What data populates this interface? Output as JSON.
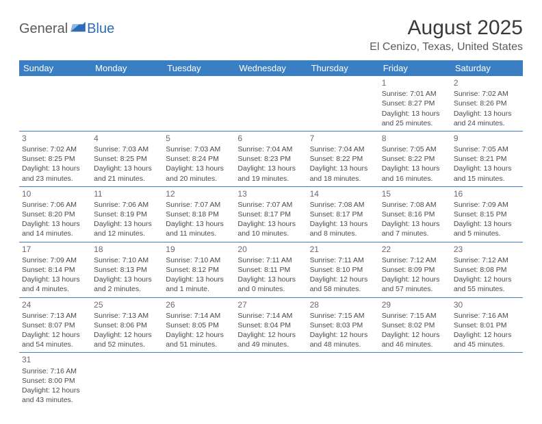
{
  "logo": {
    "part1": "General",
    "part2": "Blue"
  },
  "title": "August 2025",
  "location": "El Cenizo, Texas, United States",
  "colors": {
    "header_bg": "#3a7fc4",
    "header_fg": "#ffffff",
    "rule": "#3a7fc4",
    "text": "#4a4a4a",
    "title": "#3a3a3a",
    "logo_gray": "#5a5a5a",
    "logo_blue": "#2d6db3"
  },
  "weekdays": [
    "Sunday",
    "Monday",
    "Tuesday",
    "Wednesday",
    "Thursday",
    "Friday",
    "Saturday"
  ],
  "weeks": [
    [
      null,
      null,
      null,
      null,
      null,
      {
        "d": "1",
        "sr": "Sunrise: 7:01 AM",
        "ss": "Sunset: 8:27 PM",
        "dl1": "Daylight: 13 hours",
        "dl2": "and 25 minutes."
      },
      {
        "d": "2",
        "sr": "Sunrise: 7:02 AM",
        "ss": "Sunset: 8:26 PM",
        "dl1": "Daylight: 13 hours",
        "dl2": "and 24 minutes."
      }
    ],
    [
      {
        "d": "3",
        "sr": "Sunrise: 7:02 AM",
        "ss": "Sunset: 8:25 PM",
        "dl1": "Daylight: 13 hours",
        "dl2": "and 23 minutes."
      },
      {
        "d": "4",
        "sr": "Sunrise: 7:03 AM",
        "ss": "Sunset: 8:25 PM",
        "dl1": "Daylight: 13 hours",
        "dl2": "and 21 minutes."
      },
      {
        "d": "5",
        "sr": "Sunrise: 7:03 AM",
        "ss": "Sunset: 8:24 PM",
        "dl1": "Daylight: 13 hours",
        "dl2": "and 20 minutes."
      },
      {
        "d": "6",
        "sr": "Sunrise: 7:04 AM",
        "ss": "Sunset: 8:23 PM",
        "dl1": "Daylight: 13 hours",
        "dl2": "and 19 minutes."
      },
      {
        "d": "7",
        "sr": "Sunrise: 7:04 AM",
        "ss": "Sunset: 8:22 PM",
        "dl1": "Daylight: 13 hours",
        "dl2": "and 18 minutes."
      },
      {
        "d": "8",
        "sr": "Sunrise: 7:05 AM",
        "ss": "Sunset: 8:22 PM",
        "dl1": "Daylight: 13 hours",
        "dl2": "and 16 minutes."
      },
      {
        "d": "9",
        "sr": "Sunrise: 7:05 AM",
        "ss": "Sunset: 8:21 PM",
        "dl1": "Daylight: 13 hours",
        "dl2": "and 15 minutes."
      }
    ],
    [
      {
        "d": "10",
        "sr": "Sunrise: 7:06 AM",
        "ss": "Sunset: 8:20 PM",
        "dl1": "Daylight: 13 hours",
        "dl2": "and 14 minutes."
      },
      {
        "d": "11",
        "sr": "Sunrise: 7:06 AM",
        "ss": "Sunset: 8:19 PM",
        "dl1": "Daylight: 13 hours",
        "dl2": "and 12 minutes."
      },
      {
        "d": "12",
        "sr": "Sunrise: 7:07 AM",
        "ss": "Sunset: 8:18 PM",
        "dl1": "Daylight: 13 hours",
        "dl2": "and 11 minutes."
      },
      {
        "d": "13",
        "sr": "Sunrise: 7:07 AM",
        "ss": "Sunset: 8:17 PM",
        "dl1": "Daylight: 13 hours",
        "dl2": "and 10 minutes."
      },
      {
        "d": "14",
        "sr": "Sunrise: 7:08 AM",
        "ss": "Sunset: 8:17 PM",
        "dl1": "Daylight: 13 hours",
        "dl2": "and 8 minutes."
      },
      {
        "d": "15",
        "sr": "Sunrise: 7:08 AM",
        "ss": "Sunset: 8:16 PM",
        "dl1": "Daylight: 13 hours",
        "dl2": "and 7 minutes."
      },
      {
        "d": "16",
        "sr": "Sunrise: 7:09 AM",
        "ss": "Sunset: 8:15 PM",
        "dl1": "Daylight: 13 hours",
        "dl2": "and 5 minutes."
      }
    ],
    [
      {
        "d": "17",
        "sr": "Sunrise: 7:09 AM",
        "ss": "Sunset: 8:14 PM",
        "dl1": "Daylight: 13 hours",
        "dl2": "and 4 minutes."
      },
      {
        "d": "18",
        "sr": "Sunrise: 7:10 AM",
        "ss": "Sunset: 8:13 PM",
        "dl1": "Daylight: 13 hours",
        "dl2": "and 2 minutes."
      },
      {
        "d": "19",
        "sr": "Sunrise: 7:10 AM",
        "ss": "Sunset: 8:12 PM",
        "dl1": "Daylight: 13 hours",
        "dl2": "and 1 minute."
      },
      {
        "d": "20",
        "sr": "Sunrise: 7:11 AM",
        "ss": "Sunset: 8:11 PM",
        "dl1": "Daylight: 13 hours",
        "dl2": "and 0 minutes."
      },
      {
        "d": "21",
        "sr": "Sunrise: 7:11 AM",
        "ss": "Sunset: 8:10 PM",
        "dl1": "Daylight: 12 hours",
        "dl2": "and 58 minutes."
      },
      {
        "d": "22",
        "sr": "Sunrise: 7:12 AM",
        "ss": "Sunset: 8:09 PM",
        "dl1": "Daylight: 12 hours",
        "dl2": "and 57 minutes."
      },
      {
        "d": "23",
        "sr": "Sunrise: 7:12 AM",
        "ss": "Sunset: 8:08 PM",
        "dl1": "Daylight: 12 hours",
        "dl2": "and 55 minutes."
      }
    ],
    [
      {
        "d": "24",
        "sr": "Sunrise: 7:13 AM",
        "ss": "Sunset: 8:07 PM",
        "dl1": "Daylight: 12 hours",
        "dl2": "and 54 minutes."
      },
      {
        "d": "25",
        "sr": "Sunrise: 7:13 AM",
        "ss": "Sunset: 8:06 PM",
        "dl1": "Daylight: 12 hours",
        "dl2": "and 52 minutes."
      },
      {
        "d": "26",
        "sr": "Sunrise: 7:14 AM",
        "ss": "Sunset: 8:05 PM",
        "dl1": "Daylight: 12 hours",
        "dl2": "and 51 minutes."
      },
      {
        "d": "27",
        "sr": "Sunrise: 7:14 AM",
        "ss": "Sunset: 8:04 PM",
        "dl1": "Daylight: 12 hours",
        "dl2": "and 49 minutes."
      },
      {
        "d": "28",
        "sr": "Sunrise: 7:15 AM",
        "ss": "Sunset: 8:03 PM",
        "dl1": "Daylight: 12 hours",
        "dl2": "and 48 minutes."
      },
      {
        "d": "29",
        "sr": "Sunrise: 7:15 AM",
        "ss": "Sunset: 8:02 PM",
        "dl1": "Daylight: 12 hours",
        "dl2": "and 46 minutes."
      },
      {
        "d": "30",
        "sr": "Sunrise: 7:16 AM",
        "ss": "Sunset: 8:01 PM",
        "dl1": "Daylight: 12 hours",
        "dl2": "and 45 minutes."
      }
    ],
    [
      {
        "d": "31",
        "sr": "Sunrise: 7:16 AM",
        "ss": "Sunset: 8:00 PM",
        "dl1": "Daylight: 12 hours",
        "dl2": "and 43 minutes."
      },
      null,
      null,
      null,
      null,
      null,
      null
    ]
  ]
}
